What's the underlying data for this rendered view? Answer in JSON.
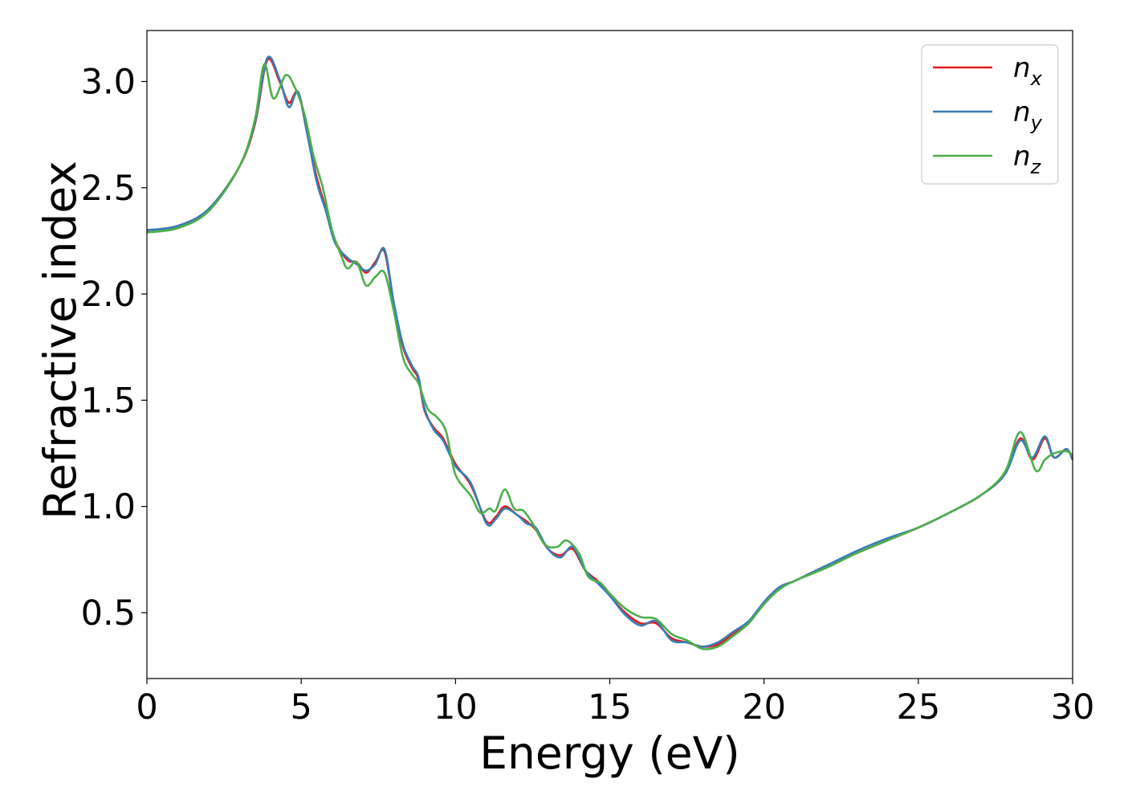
{
  "chart_data": {
    "type": "line",
    "title": "",
    "xlabel": "Energy (eV)",
    "ylabel": "Refractive index",
    "xlim": [
      0,
      30
    ],
    "ylim": [
      0.19,
      3.24
    ],
    "xticks": [
      "0",
      "5",
      "10",
      "15",
      "20",
      "25",
      "30"
    ],
    "yticks": [
      "0.5",
      "1.0",
      "1.5",
      "2.0",
      "2.5",
      "3.0"
    ],
    "grid": false,
    "legend_position": "top-right",
    "series": [
      {
        "name": "n_x",
        "label_base": "n",
        "label_sub": "x",
        "color": "#e41a1c",
        "points": [
          [
            0,
            2.3
          ],
          [
            1,
            2.32
          ],
          [
            2,
            2.4
          ],
          [
            3,
            2.6
          ],
          [
            3.5,
            2.8
          ],
          [
            3.9,
            3.1
          ],
          [
            4.3,
            3.0
          ],
          [
            4.6,
            2.9
          ],
          [
            4.9,
            2.95
          ],
          [
            5.2,
            2.75
          ],
          [
            5.5,
            2.55
          ],
          [
            5.8,
            2.4
          ],
          [
            6.1,
            2.25
          ],
          [
            6.5,
            2.16
          ],
          [
            6.8,
            2.15
          ],
          [
            7.1,
            2.1
          ],
          [
            7.4,
            2.15
          ],
          [
            7.7,
            2.2
          ],
          [
            8.0,
            1.95
          ],
          [
            8.3,
            1.75
          ],
          [
            8.6,
            1.65
          ],
          [
            8.8,
            1.6
          ],
          [
            9.0,
            1.45
          ],
          [
            9.3,
            1.37
          ],
          [
            9.6,
            1.32
          ],
          [
            10.0,
            1.2
          ],
          [
            10.5,
            1.1
          ],
          [
            11.0,
            0.93
          ],
          [
            11.3,
            0.95
          ],
          [
            11.6,
            1.0
          ],
          [
            12.0,
            0.96
          ],
          [
            12.3,
            0.93
          ],
          [
            12.6,
            0.89
          ],
          [
            13.0,
            0.8
          ],
          [
            13.4,
            0.77
          ],
          [
            13.8,
            0.8
          ],
          [
            14.2,
            0.7
          ],
          [
            14.6,
            0.65
          ],
          [
            15.0,
            0.58
          ],
          [
            15.5,
            0.5
          ],
          [
            16.0,
            0.45
          ],
          [
            16.5,
            0.45
          ],
          [
            17.0,
            0.38
          ],
          [
            17.5,
            0.36
          ],
          [
            18.0,
            0.34
          ],
          [
            18.5,
            0.35
          ],
          [
            19.0,
            0.4
          ],
          [
            19.5,
            0.45
          ],
          [
            20.0,
            0.55
          ],
          [
            20.5,
            0.62
          ],
          [
            21.0,
            0.65
          ],
          [
            22.0,
            0.72
          ],
          [
            23.0,
            0.78
          ],
          [
            24.0,
            0.84
          ],
          [
            25.0,
            0.9
          ],
          [
            26.0,
            0.97
          ],
          [
            27.0,
            1.05
          ],
          [
            27.8,
            1.15
          ],
          [
            28.3,
            1.32
          ],
          [
            28.7,
            1.22
          ],
          [
            29.1,
            1.32
          ],
          [
            29.4,
            1.23
          ],
          [
            29.8,
            1.27
          ],
          [
            30.0,
            1.22
          ]
        ]
      },
      {
        "name": "n_y",
        "label_base": "n",
        "label_sub": "y",
        "color": "#377eb8",
        "points": [
          [
            0,
            2.3
          ],
          [
            1,
            2.32
          ],
          [
            2,
            2.4
          ],
          [
            3,
            2.6
          ],
          [
            3.5,
            2.81
          ],
          [
            3.9,
            3.11
          ],
          [
            4.3,
            3.01
          ],
          [
            4.6,
            2.88
          ],
          [
            4.9,
            2.95
          ],
          [
            5.2,
            2.75
          ],
          [
            5.5,
            2.53
          ],
          [
            5.8,
            2.39
          ],
          [
            6.1,
            2.24
          ],
          [
            6.5,
            2.17
          ],
          [
            6.8,
            2.14
          ],
          [
            7.1,
            2.11
          ],
          [
            7.4,
            2.14
          ],
          [
            7.7,
            2.21
          ],
          [
            8.0,
            1.96
          ],
          [
            8.3,
            1.76
          ],
          [
            8.6,
            1.66
          ],
          [
            8.8,
            1.61
          ],
          [
            9.0,
            1.46
          ],
          [
            9.3,
            1.36
          ],
          [
            9.6,
            1.31
          ],
          [
            10.0,
            1.19
          ],
          [
            10.5,
            1.11
          ],
          [
            11.0,
            0.92
          ],
          [
            11.3,
            0.94
          ],
          [
            11.6,
            0.99
          ],
          [
            12.0,
            0.96
          ],
          [
            12.3,
            0.92
          ],
          [
            12.6,
            0.9
          ],
          [
            13.0,
            0.8
          ],
          [
            13.4,
            0.76
          ],
          [
            13.8,
            0.81
          ],
          [
            14.2,
            0.7
          ],
          [
            14.6,
            0.64
          ],
          [
            15.0,
            0.58
          ],
          [
            15.5,
            0.49
          ],
          [
            16.0,
            0.44
          ],
          [
            16.5,
            0.46
          ],
          [
            17.0,
            0.37
          ],
          [
            17.5,
            0.36
          ],
          [
            18.0,
            0.34
          ],
          [
            18.5,
            0.36
          ],
          [
            19.0,
            0.41
          ],
          [
            19.5,
            0.46
          ],
          [
            20.0,
            0.55
          ],
          [
            20.5,
            0.62
          ],
          [
            21.0,
            0.65
          ],
          [
            22.0,
            0.72
          ],
          [
            23.0,
            0.79
          ],
          [
            24.0,
            0.85
          ],
          [
            25.0,
            0.9
          ],
          [
            26.0,
            0.97
          ],
          [
            27.0,
            1.05
          ],
          [
            27.8,
            1.15
          ],
          [
            28.3,
            1.31
          ],
          [
            28.7,
            1.23
          ],
          [
            29.1,
            1.33
          ],
          [
            29.4,
            1.23
          ],
          [
            29.8,
            1.27
          ],
          [
            30.0,
            1.22
          ]
        ]
      },
      {
        "name": "n_z",
        "label_base": "n",
        "label_sub": "z",
        "color": "#4daf4a",
        "points": [
          [
            0,
            2.29
          ],
          [
            1,
            2.31
          ],
          [
            2,
            2.39
          ],
          [
            3,
            2.6
          ],
          [
            3.5,
            2.82
          ],
          [
            3.8,
            3.08
          ],
          [
            4.1,
            2.92
          ],
          [
            4.5,
            3.03
          ],
          [
            4.8,
            2.97
          ],
          [
            5.1,
            2.85
          ],
          [
            5.4,
            2.65
          ],
          [
            5.7,
            2.5
          ],
          [
            6.0,
            2.3
          ],
          [
            6.3,
            2.18
          ],
          [
            6.5,
            2.12
          ],
          [
            6.8,
            2.15
          ],
          [
            7.1,
            2.04
          ],
          [
            7.4,
            2.08
          ],
          [
            7.7,
            2.1
          ],
          [
            8.0,
            1.92
          ],
          [
            8.3,
            1.7
          ],
          [
            8.6,
            1.62
          ],
          [
            8.8,
            1.58
          ],
          [
            9.1,
            1.46
          ],
          [
            9.4,
            1.42
          ],
          [
            9.7,
            1.35
          ],
          [
            10.0,
            1.15
          ],
          [
            10.5,
            1.05
          ],
          [
            10.8,
            0.97
          ],
          [
            11.1,
            0.99
          ],
          [
            11.3,
            0.98
          ],
          [
            11.6,
            1.08
          ],
          [
            11.9,
            0.99
          ],
          [
            12.2,
            0.98
          ],
          [
            12.5,
            0.92
          ],
          [
            12.9,
            0.82
          ],
          [
            13.3,
            0.81
          ],
          [
            13.6,
            0.84
          ],
          [
            14.0,
            0.78
          ],
          [
            14.3,
            0.67
          ],
          [
            14.7,
            0.64
          ],
          [
            15.0,
            0.59
          ],
          [
            15.5,
            0.52
          ],
          [
            16.0,
            0.48
          ],
          [
            16.5,
            0.47
          ],
          [
            17.0,
            0.4
          ],
          [
            17.5,
            0.37
          ],
          [
            18.0,
            0.33
          ],
          [
            18.5,
            0.34
          ],
          [
            19.0,
            0.39
          ],
          [
            19.5,
            0.45
          ],
          [
            20.0,
            0.54
          ],
          [
            20.5,
            0.61
          ],
          [
            21.0,
            0.65
          ],
          [
            22.0,
            0.71
          ],
          [
            23.0,
            0.78
          ],
          [
            24.0,
            0.84
          ],
          [
            25.0,
            0.9
          ],
          [
            26.0,
            0.97
          ],
          [
            27.0,
            1.05
          ],
          [
            27.8,
            1.16
          ],
          [
            28.3,
            1.35
          ],
          [
            28.8,
            1.17
          ],
          [
            29.1,
            1.22
          ],
          [
            29.4,
            1.25
          ],
          [
            29.8,
            1.26
          ],
          [
            30.0,
            1.24
          ]
        ]
      }
    ]
  }
}
